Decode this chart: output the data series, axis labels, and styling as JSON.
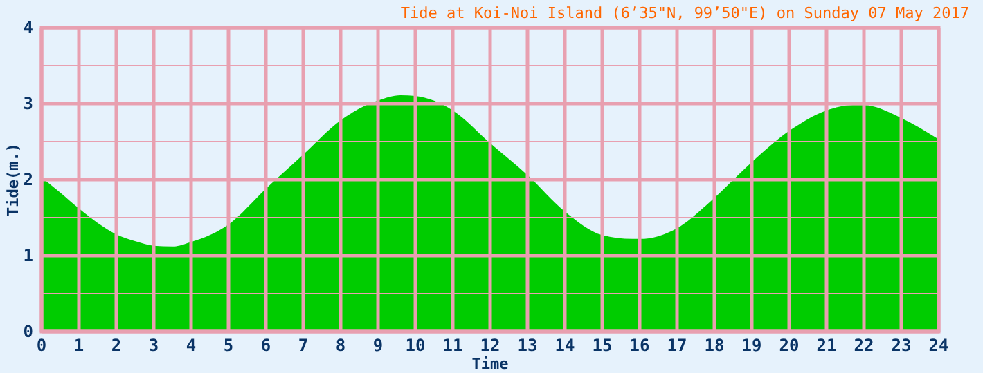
{
  "chart_data": {
    "type": "area",
    "title": "Tide at Koi-Noi Island (6’35\"N, 99’50\"E) on Sunday 07 May 2017",
    "xlabel": "Time",
    "ylabel": "Tide(m.)",
    "x": [
      0,
      0.5,
      1,
      2,
      2.5,
      3,
      3.5,
      4,
      5,
      6,
      7,
      8,
      9,
      9.6,
      10,
      11,
      12,
      13,
      14,
      15,
      15.8,
      16,
      17,
      18,
      19,
      20,
      21,
      21.7,
      22,
      23,
      24
    ],
    "values": [
      2.03,
      1.83,
      1.62,
      1.28,
      1.19,
      1.13,
      1.12,
      1.18,
      1.41,
      1.88,
      2.33,
      2.78,
      3.04,
      3.11,
      3.1,
      2.91,
      2.48,
      2.06,
      1.58,
      1.27,
      1.22,
      1.22,
      1.36,
      1.76,
      2.23,
      2.64,
      2.91,
      2.98,
      2.98,
      2.81,
      2.53
    ],
    "color": "#00cc00",
    "xlim": [
      0,
      24
    ],
    "xticks": [
      0,
      1,
      2,
      3,
      4,
      5,
      6,
      7,
      8,
      9,
      10,
      11,
      12,
      13,
      14,
      15,
      16,
      17,
      18,
      19,
      20,
      21,
      22,
      23,
      24
    ],
    "ylim": [
      0,
      4
    ],
    "yticks": [
      0,
      {
        "value": 0.5,
        "label": null
      },
      1,
      {
        "value": 1.5,
        "label": null
      },
      2,
      {
        "value": 2.5,
        "label": null
      },
      3,
      {
        "value": 3.5,
        "label": null
      },
      4
    ],
    "grid": true
  }
}
